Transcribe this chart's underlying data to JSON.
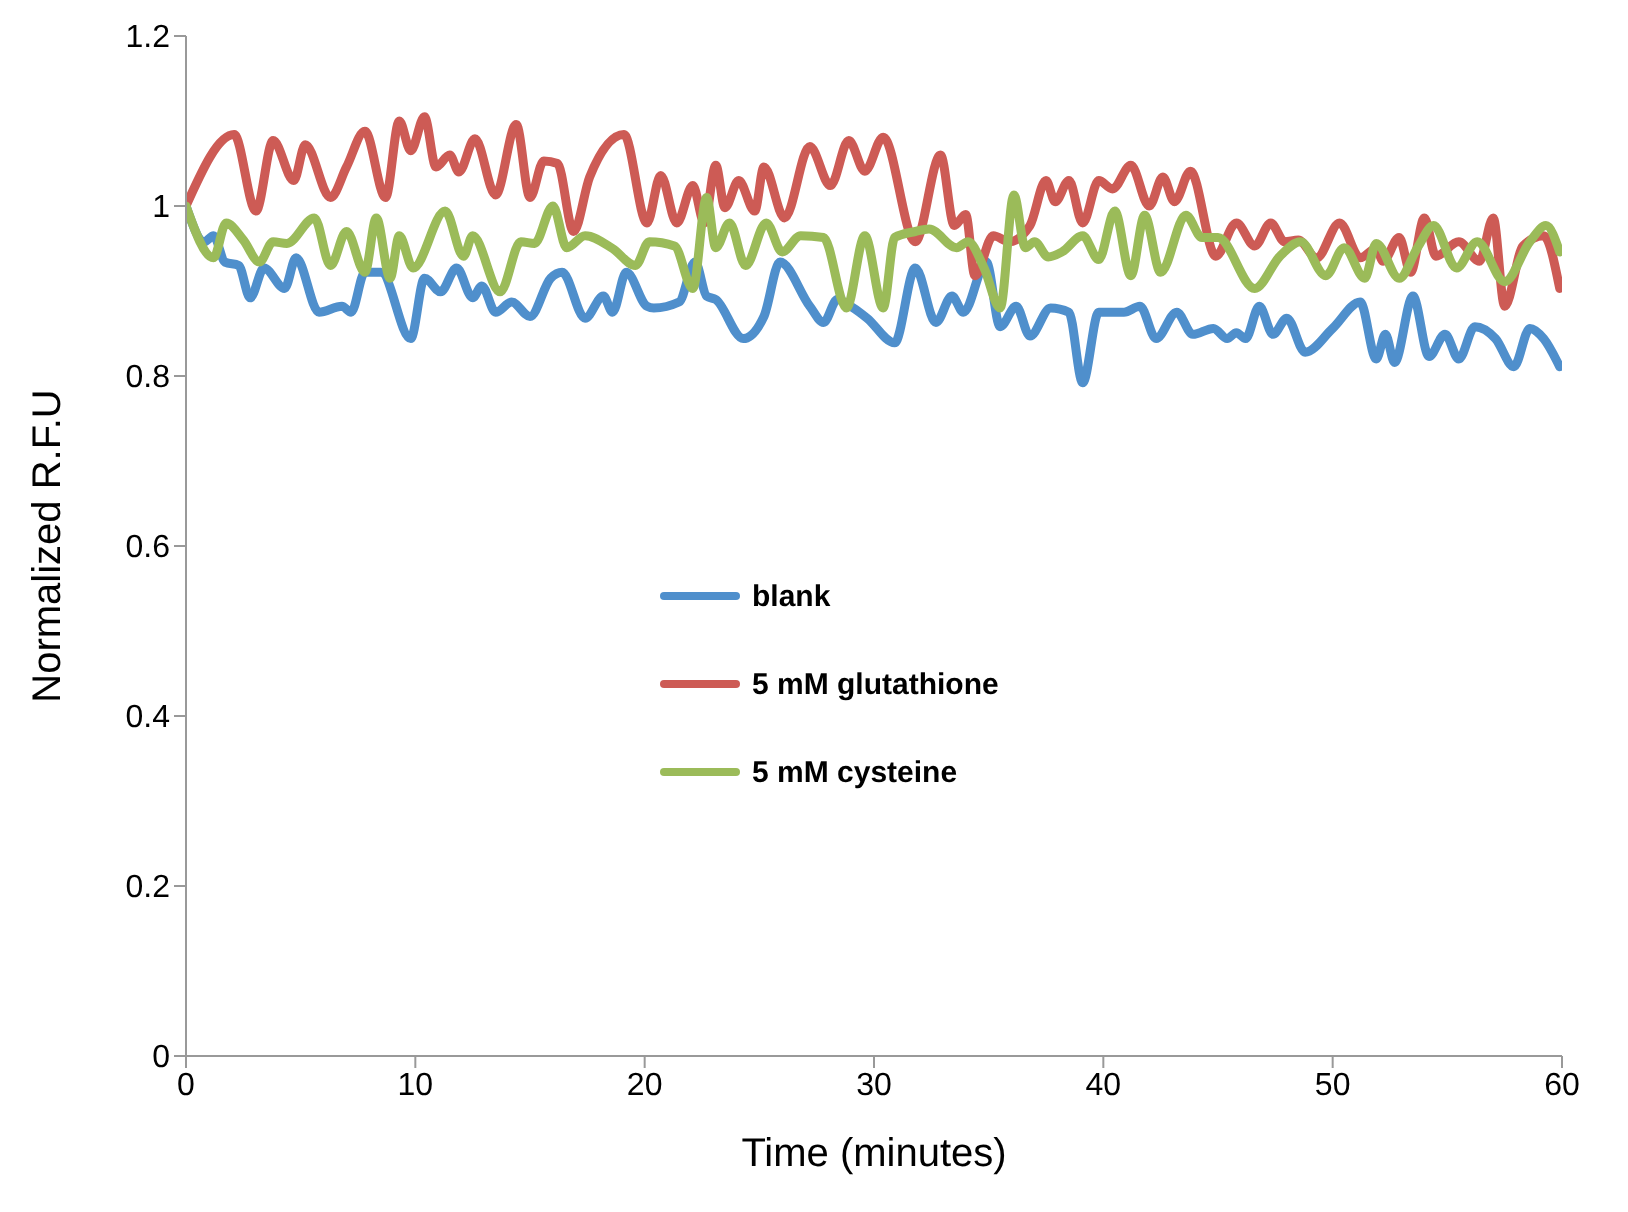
{
  "chart_data": {
    "type": "line",
    "xlabel": "Time (minutes)",
    "ylabel": "Normalized R.F.U",
    "xlim": [
      0,
      60
    ],
    "xticks": [
      0,
      10,
      20,
      30,
      40,
      50,
      60
    ],
    "ylim": [
      0,
      1.2
    ],
    "yticks": [
      0,
      0.2,
      0.4,
      0.6,
      0.8,
      1,
      1.2
    ],
    "grid": false,
    "legend": "center",
    "marker": "none",
    "line_style": "solid",
    "series": [
      {
        "name": "blank",
        "color": "#4f8fcc",
        "x": [
          0,
          0.8,
          1.2,
          1.7,
          2.3,
          2.8,
          3.4,
          4.3,
          4.8,
          5.8,
          6.8,
          7.2,
          7.8,
          8.5,
          9.8,
          10.4,
          11.1,
          11.8,
          12.5,
          12.9,
          13.5,
          14.2,
          15.0,
          15.9,
          16.4,
          17.4,
          18.2,
          18.6,
          19.2,
          20.1,
          20.4,
          21.5,
          22.2,
          22.7,
          23.1,
          24.3,
          25.2,
          25.9,
          27.2,
          27.8,
          28.4,
          29.1,
          29.7,
          30.9,
          31.8,
          32.7,
          33.4,
          33.9,
          34.9,
          35.5,
          36.2,
          36.8,
          37.7,
          38.5,
          39.1,
          39.8,
          40.9,
          41.6,
          42.3,
          43.2,
          43.9,
          44.8,
          45.4,
          45.8,
          46.2,
          46.8,
          47.4,
          48.0,
          48.8,
          50.0,
          51.2,
          51.9,
          52.3,
          52.7,
          53.5,
          54.2,
          54.9,
          55.5,
          56.2,
          57.1,
          57.9,
          58.6,
          59.2,
          59.9
        ],
        "values": [
          1.0,
          0.958,
          0.965,
          0.934,
          0.93,
          0.892,
          0.927,
          0.903,
          0.939,
          0.875,
          0.882,
          0.875,
          0.922,
          0.922,
          0.844,
          0.915,
          0.899,
          0.927,
          0.892,
          0.906,
          0.875,
          0.887,
          0.87,
          0.915,
          0.922,
          0.868,
          0.894,
          0.875,
          0.922,
          0.882,
          0.88,
          0.887,
          0.934,
          0.894,
          0.89,
          0.844,
          0.87,
          0.934,
          0.882,
          0.863,
          0.89,
          0.88,
          0.868,
          0.839,
          0.927,
          0.863,
          0.894,
          0.875,
          0.934,
          0.858,
          0.882,
          0.847,
          0.88,
          0.875,
          0.792,
          0.875,
          0.875,
          0.882,
          0.844,
          0.875,
          0.849,
          0.856,
          0.844,
          0.851,
          0.844,
          0.882,
          0.849,
          0.868,
          0.828,
          0.856,
          0.887,
          0.82,
          0.849,
          0.816,
          0.894,
          0.823,
          0.849,
          0.82,
          0.858,
          0.844,
          0.811,
          0.856,
          0.844,
          0.811
        ]
      },
      {
        "name": "5 mM glutathione",
        "color": "#cd5b55",
        "x": [
          0,
          2.1,
          3.05,
          3.8,
          4.7,
          5.2,
          6.3,
          7.0,
          7.8,
          8.7,
          9.3,
          9.8,
          10.4,
          10.9,
          11.5,
          11.9,
          12.6,
          13.5,
          14.4,
          15.0,
          15.6,
          16.2,
          16.9,
          17.6,
          19.1,
          20.1,
          20.7,
          21.4,
          22.1,
          22.6,
          23.1,
          23.5,
          24.1,
          24.8,
          25.2,
          26.1,
          27.2,
          28.1,
          28.9,
          29.6,
          30.4,
          31.8,
          32.9,
          33.5,
          34.0,
          34.4,
          35.2,
          35.9,
          36.8,
          37.5,
          37.9,
          38.5,
          39.1,
          39.8,
          40.4,
          41.2,
          42.0,
          42.6,
          43.1,
          43.8,
          44.9,
          45.8,
          46.6,
          47.3,
          47.9,
          48.5,
          49.3,
          50.3,
          51.2,
          51.9,
          52.2,
          52.9,
          53.4,
          54.0,
          54.5,
          55.5,
          56.4,
          57.0,
          57.5,
          58.3,
          59.2,
          59.9
        ],
        "values": [
          1.0,
          1.084,
          0.994,
          1.077,
          1.03,
          1.072,
          1.01,
          1.046,
          1.088,
          1.01,
          1.1,
          1.065,
          1.105,
          1.046,
          1.06,
          1.04,
          1.079,
          1.013,
          1.096,
          1.01,
          1.053,
          1.05,
          0.97,
          1.034,
          1.084,
          0.98,
          1.036,
          0.98,
          1.024,
          0.98,
          1.048,
          0.998,
          1.03,
          0.994,
          1.046,
          0.986,
          1.07,
          1.024,
          1.077,
          1.041,
          1.081,
          0.958,
          1.06,
          0.977,
          0.99,
          0.918,
          0.965,
          0.958,
          0.977,
          1.03,
          1.005,
          1.03,
          0.98,
          1.03,
          1.02,
          1.048,
          1.0,
          1.034,
          1.005,
          1.041,
          0.941,
          0.98,
          0.953,
          0.98,
          0.958,
          0.96,
          0.939,
          0.98,
          0.939,
          0.95,
          0.935,
          0.963,
          0.922,
          0.986,
          0.941,
          0.958,
          0.935,
          0.986,
          0.882,
          0.953,
          0.965,
          0.903
        ]
      },
      {
        "name": "5 mM cysteine",
        "color": "#9bbb59",
        "x": [
          0,
          1.2,
          1.75,
          2.5,
          3.2,
          3.8,
          4.4,
          5.6,
          6.3,
          7.0,
          7.8,
          8.3,
          8.9,
          9.3,
          9.9,
          11.3,
          12.1,
          12.5,
          13.7,
          14.6,
          15.2,
          16.0,
          16.6,
          17.4,
          18.6,
          19.6,
          20.2,
          21.3,
          22.1,
          22.7,
          23.1,
          23.7,
          24.4,
          25.3,
          26.0,
          26.8,
          27.8,
          28.8,
          29.6,
          30.4,
          30.9,
          31.8,
          32.4,
          33.6,
          34.1,
          34.8,
          35.5,
          36.1,
          36.6,
          37.0,
          37.6,
          38.2,
          39.1,
          39.8,
          40.5,
          41.2,
          41.8,
          42.5,
          43.6,
          44.3,
          45.0,
          46.6,
          47.7,
          48.6,
          49.7,
          50.5,
          51.4,
          51.9,
          52.9,
          53.7,
          54.4,
          55.4,
          56.3,
          57.5,
          58.6,
          59.3,
          59.9
        ],
        "values": [
          1.0,
          0.939,
          0.98,
          0.96,
          0.934,
          0.958,
          0.956,
          0.986,
          0.93,
          0.97,
          0.922,
          0.986,
          0.915,
          0.965,
          0.927,
          0.994,
          0.941,
          0.965,
          0.899,
          0.958,
          0.956,
          1.0,
          0.951,
          0.965,
          0.95,
          0.93,
          0.958,
          0.953,
          0.903,
          1.01,
          0.951,
          0.98,
          0.93,
          0.98,
          0.946,
          0.965,
          0.963,
          0.88,
          0.965,
          0.88,
          0.963,
          0.97,
          0.973,
          0.951,
          0.958,
          0.927,
          0.88,
          1.013,
          0.951,
          0.958,
          0.94,
          0.946,
          0.965,
          0.937,
          0.994,
          0.918,
          0.989,
          0.922,
          0.989,
          0.963,
          0.963,
          0.903,
          0.941,
          0.958,
          0.918,
          0.951,
          0.915,
          0.956,
          0.915,
          0.951,
          0.977,
          0.927,
          0.958,
          0.911,
          0.958,
          0.977,
          0.946
        ]
      }
    ]
  }
}
